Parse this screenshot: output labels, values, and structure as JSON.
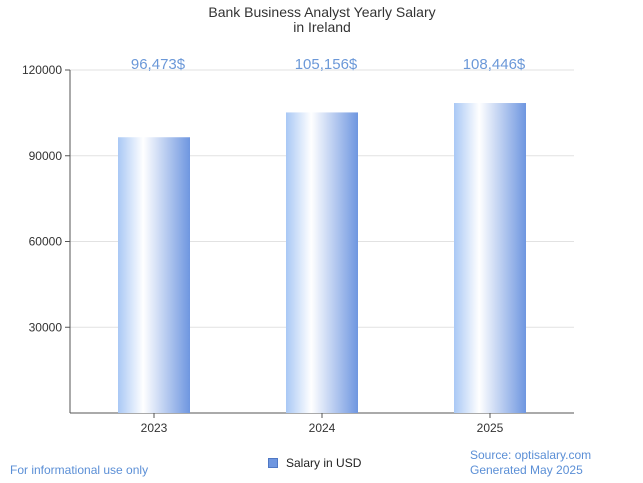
{
  "chart_data": {
    "type": "bar",
    "title": [
      "Bank Business Analyst Yearly Salary",
      "in Ireland"
    ],
    "categories": [
      "2023",
      "2024",
      "2025"
    ],
    "series": [
      {
        "name": "Salary in USD",
        "values": [
          96473,
          105156,
          108446
        ]
      }
    ],
    "data_labels": [
      "96,473$",
      "105,156$",
      "108,446$"
    ],
    "y_ticks": [
      "30000",
      "60000",
      "90000",
      "120000"
    ],
    "ylim": [
      0,
      120000
    ],
    "grid": true,
    "legend_position": "bottom-center",
    "colors": {
      "bar_light": "#ffffff",
      "bar_mid": "#a9c8f5",
      "bar_dark": "#6e96e0",
      "label": "#6b98d8"
    }
  },
  "footer": {
    "left": "For informational use only",
    "right_line1": "Source: optisalary.com",
    "right_line2": "Generated May 2025"
  }
}
